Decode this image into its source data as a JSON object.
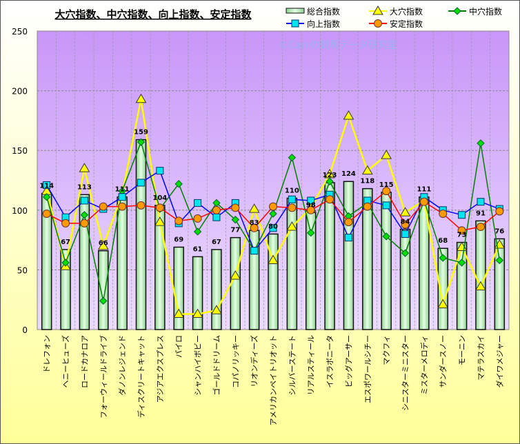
{
  "chart_data": {
    "type": "bar+line",
    "title": "大穴指数、中穴指数、向上指数、安定指数",
    "watermark": "©Caniの競馬データ研究室",
    "ylim": [
      0,
      250
    ],
    "yticks": [
      0,
      50,
      100,
      150,
      200,
      250
    ],
    "grid": true,
    "legend_position": "top-right",
    "categories": [
      "ドレフォン",
      "ヘニーヒューズ",
      "ロードカナロア",
      "フォーウィールドライブ",
      "ダノンレジェンド",
      "ディスクリートキャット",
      "アジアエクスプレス",
      "パイロ",
      "シャンハイボビー",
      "ゴールドドリーム",
      "コパノリッキー",
      "リオンディーズ",
      "アメリカンペイトリオット",
      "シルバーステート",
      "リアルスティール",
      "イスラボニータ",
      "ビッグアーサー",
      "エスポワールシチー",
      "マクフィ",
      "シニスターミニスター",
      "ミスターメロディ",
      "サンダースノー",
      "モーニン",
      "マテラスカイ",
      "ダイワメジャー"
    ],
    "series": [
      {
        "name": "総合指数",
        "kind": "bar",
        "color": "#c8f0c8",
        "values": [
          114,
          67,
          113,
          66,
          111,
          159,
          104,
          69,
          61,
          67,
          77,
          83,
          80,
          110,
          98,
          123,
          124,
          118,
          115,
          84,
          111,
          68,
          73,
          91,
          76
        ]
      },
      {
        "name": "大穴指数",
        "kind": "line",
        "marker": "triangle",
        "color": "#ffff00",
        "values": [
          116,
          53,
          135,
          70,
          113,
          193,
          90,
          13,
          13,
          16,
          45,
          101,
          58,
          86,
          102,
          130,
          179,
          133,
          146,
          98,
          108,
          21,
          69,
          36,
          71
        ]
      },
      {
        "name": "中穴指数",
        "kind": "line",
        "marker": "diamond",
        "color": "#008000",
        "values": [
          111,
          56,
          96,
          24,
          116,
          157,
          101,
          122,
          82,
          106,
          92,
          66,
          97,
          144,
          81,
          124,
          95,
          106,
          78,
          64,
          108,
          60,
          56,
          156,
          58
        ]
      },
      {
        "name": "向上指数",
        "kind": "line",
        "marker": "square",
        "color": "#0000ff",
        "values": [
          121,
          94,
          108,
          101,
          111,
          123,
          133,
          89,
          106,
          94,
          106,
          66,
          85,
          109,
          108,
          113,
          77,
          108,
          104,
          80,
          111,
          100,
          96,
          107,
          101
        ]
      },
      {
        "name": "安定指数",
        "kind": "line",
        "marker": "circle",
        "color": "#ff0000",
        "values": [
          97,
          89,
          89,
          103,
          103,
          104,
          102,
          91,
          93,
          100,
          102,
          85,
          103,
          102,
          100,
          109,
          90,
          103,
          116,
          88,
          107,
          97,
          83,
          86,
          99
        ]
      }
    ]
  }
}
